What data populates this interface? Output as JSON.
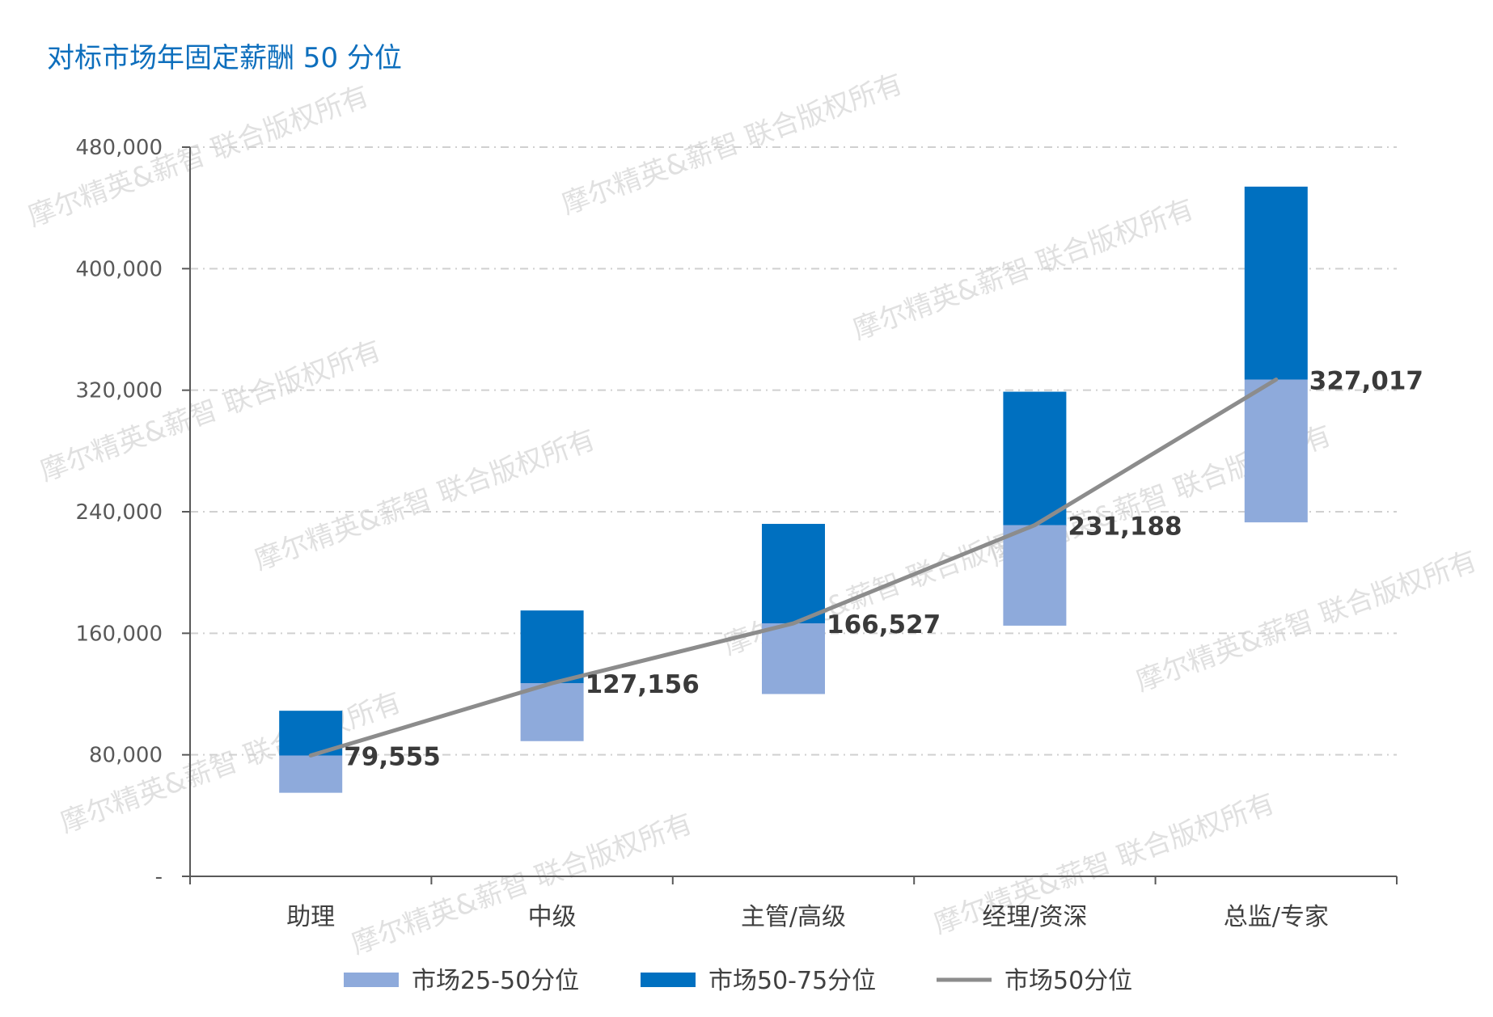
{
  "chart_data": {
    "type": "bar",
    "title": "对标市场年固定薪酬 50 分位",
    "categories": [
      "助理",
      "中级",
      "主管/高级",
      "经理/资深",
      "总监/专家"
    ],
    "ylim": [
      0,
      480000
    ],
    "yticks": [
      0,
      80000,
      160000,
      240000,
      320000,
      400000,
      480000
    ],
    "ytick_labels": [
      "-",
      "80,000",
      "160,000",
      "240,000",
      "320,000",
      "400,000",
      "480,000"
    ],
    "grid": true,
    "legend_position": "bottom",
    "p25": [
      55000,
      89000,
      120000,
      165000,
      233000
    ],
    "p75": [
      109000,
      175000,
      232000,
      319000,
      454000
    ],
    "series": [
      {
        "name": "市场25-50分位",
        "kind": "bar",
        "color": "#8eaadb",
        "range": "p25-p50"
      },
      {
        "name": "市场50-75分位",
        "kind": "bar",
        "color": "#0070c0",
        "range": "p50-p75"
      },
      {
        "name": "市场50分位",
        "kind": "line",
        "color": "#8c8c8c",
        "values": [
          79555,
          127156,
          166527,
          231188,
          327017
        ]
      }
    ],
    "data_labels": [
      "79,555",
      "127,156",
      "166,527",
      "231,188",
      "327,017"
    ]
  },
  "watermark_text": "摩尔精英&薪智 联合版权所有"
}
